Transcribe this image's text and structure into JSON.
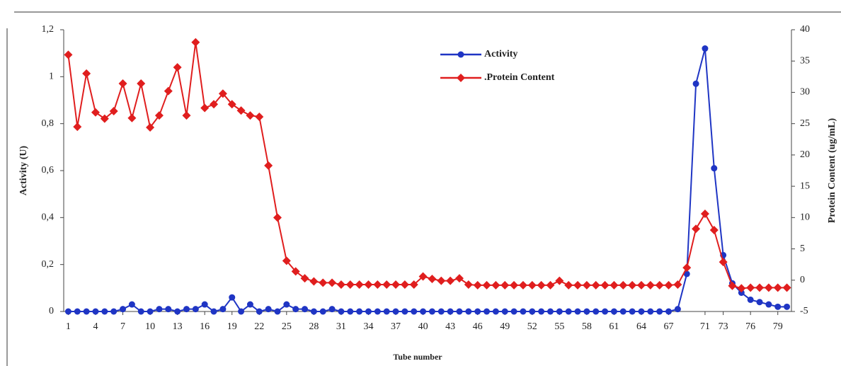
{
  "chart_data": {
    "type": "line",
    "x_label": "Tube number",
    "y_label": "Activity (U)",
    "y2_label": "Protein Content (ug/mL)",
    "x": [
      1,
      2,
      3,
      4,
      5,
      6,
      7,
      8,
      9,
      10,
      11,
      12,
      13,
      14,
      15,
      16,
      17,
      18,
      19,
      20,
      21,
      22,
      23,
      24,
      25,
      26,
      27,
      28,
      29,
      30,
      31,
      32,
      33,
      34,
      35,
      36,
      37,
      38,
      39,
      40,
      41,
      42,
      43,
      44,
      45,
      46,
      47,
      48,
      49,
      50,
      51,
      52,
      53,
      54,
      55,
      56,
      57,
      58,
      59,
      60,
      61,
      62,
      63,
      64,
      65,
      66,
      67,
      68,
      69,
      70,
      71,
      72,
      73,
      74,
      75,
      76,
      77,
      78,
      79,
      80
    ],
    "series": [
      {
        "name": "Activity",
        "color": "#1f35c4",
        "marker": "circle",
        "values": [
          0,
          0,
          0,
          0,
          0,
          0,
          0.01,
          0.03,
          0,
          0,
          0.01,
          0.01,
          0,
          0.01,
          0.01,
          0.03,
          0,
          0.01,
          0.06,
          0,
          0.03,
          0,
          0.01,
          0,
          0.03,
          0.01,
          0.01,
          0,
          0,
          0.01,
          0,
          0,
          0,
          0,
          0,
          0,
          0,
          0,
          0,
          0,
          0,
          0,
          0,
          0,
          0,
          0,
          0,
          0,
          0,
          0,
          0,
          0,
          0,
          0,
          0,
          0,
          0,
          0,
          0,
          0,
          0,
          0,
          0,
          0,
          0,
          0,
          0,
          0.01,
          0.16,
          0.97,
          1.12,
          0.61,
          0.24,
          0.12,
          0.08,
          0.05,
          0.04,
          0.03,
          0.02,
          0.02
        ]
      },
      {
        "name": ".Protein Content",
        "color": "#e01e1e",
        "marker": "diamond",
        "axis": "y2",
        "values": [
          36,
          24.5,
          33,
          26.8,
          25.8,
          27,
          31.4,
          25.9,
          31.4,
          24.4,
          26.3,
          30.2,
          34,
          26.3,
          38,
          27.5,
          28.1,
          29.8,
          28.1,
          27.1,
          26.3,
          26.1,
          18.3,
          10,
          3.1,
          1.4,
          0.3,
          -0.2,
          -0.4,
          -0.4,
          -0.7,
          -0.7,
          -0.7,
          -0.7,
          -0.7,
          -0.7,
          -0.7,
          -0.7,
          -0.7,
          0.6,
          0.2,
          -0.1,
          -0.1,
          0.3,
          -0.7,
          -0.8,
          -0.8,
          -0.8,
          -0.8,
          -0.8,
          -0.8,
          -0.8,
          -0.8,
          -0.8,
          -0.1,
          -0.8,
          -0.8,
          -0.8,
          -0.8,
          -0.8,
          -0.8,
          -0.8,
          -0.8,
          -0.8,
          -0.8,
          -0.8,
          -0.8,
          -0.7,
          2,
          8.2,
          10.6,
          8,
          2.9,
          -0.9,
          -1.3,
          -1.2,
          -1.2,
          -1.2,
          -1.2,
          -1.2
        ]
      }
    ],
    "xlim": [
      0.5,
      80.5
    ],
    "xticks": [
      1,
      4,
      7,
      10,
      13,
      16,
      19,
      22,
      25,
      28,
      31,
      34,
      37,
      40,
      43,
      46,
      49,
      52,
      55,
      58,
      61,
      64,
      67,
      71,
      73,
      76,
      79
    ],
    "ylim": [
      0,
      1.2
    ],
    "yticks": [
      0,
      {
        "value": 0.2,
        "label": "0,2"
      },
      {
        "value": 0.4,
        "label": "0,4"
      },
      {
        "value": 0.6,
        "label": "0,6"
      },
      {
        "value": 0.8,
        "label": "0,8"
      },
      1,
      {
        "value": 1.2,
        "label": "1,2"
      }
    ],
    "y2lim": [
      -5,
      40
    ],
    "y2ticks": [
      -5,
      0,
      5,
      10,
      15,
      20,
      25,
      30,
      35,
      40
    ],
    "legend": "top-center"
  }
}
